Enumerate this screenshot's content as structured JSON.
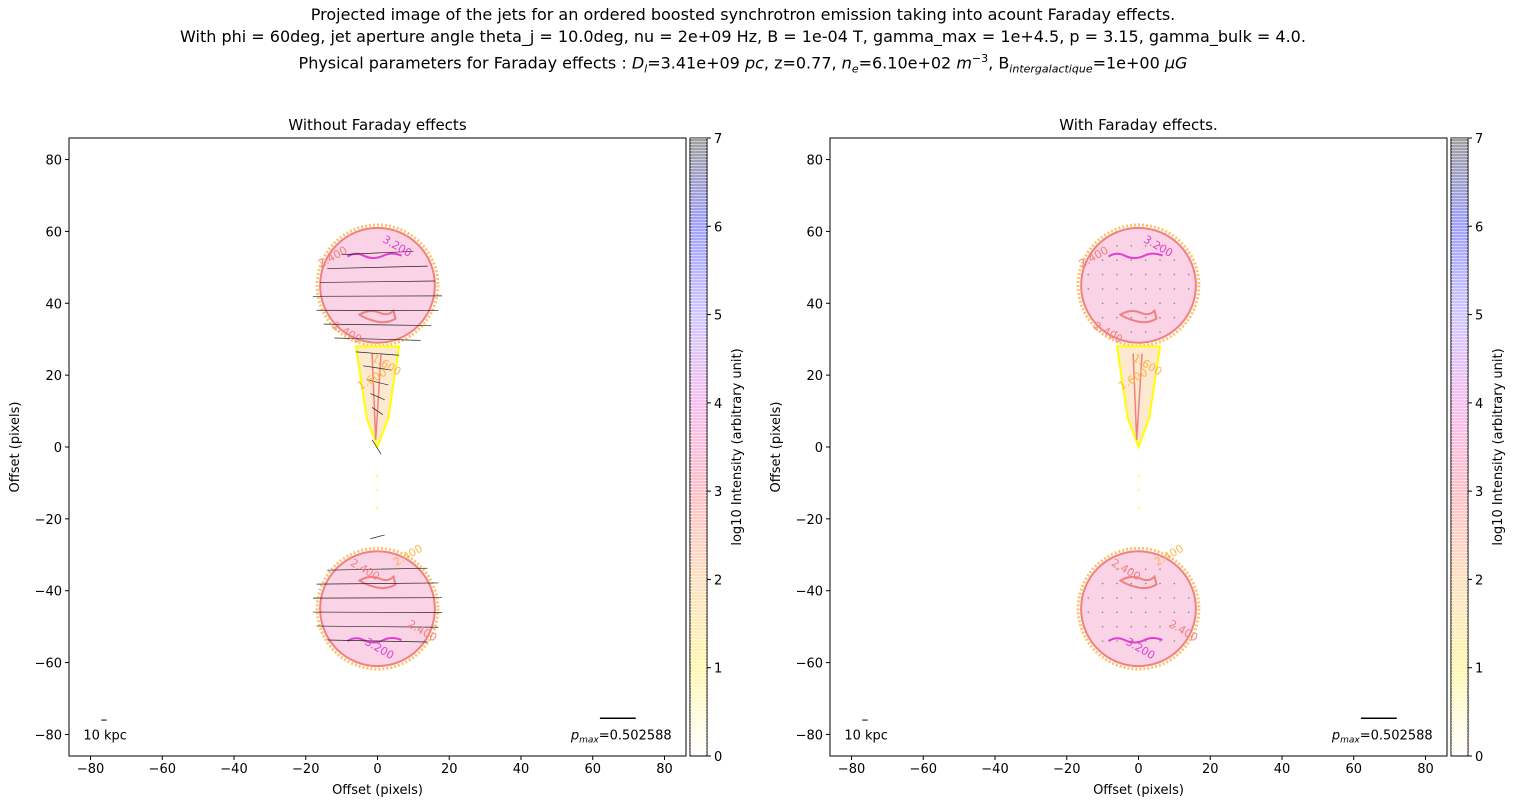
{
  "figure": {
    "title_line1": "Projected image of the jets for an ordered boosted synchrotron emission taking into acount Faraday effects.",
    "title_line2": "With phi = 60deg, jet aperture angle theta_j = 10.0deg, nu = 2e+09 Hz, B = 1e-04 T, gamma_max = 1e+4.5, p = 3.15, gamma_bulk = 4.0.",
    "title_line3_prefix": "Physical parameters for Faraday effects : ",
    "title_line3_dl": "D",
    "title_line3_dl_sub": "l",
    "title_line3_dl_val": "=3.41e+09 ",
    "title_line3_dl_unit": "pc",
    "title_line3_z": ", z",
    "title_line3_z_val": "=0.77, ",
    "title_line3_ne": "n",
    "title_line3_ne_sub": "e",
    "title_line3_ne_val": "=6.10e+02 ",
    "title_line3_ne_unit": "m",
    "title_line3_ne_exp": "−3",
    "title_line3_b": ", B",
    "title_line3_b_sub": "intergalactique",
    "title_line3_b_val": "=1e+00 ",
    "title_line3_b_unit": "μG"
  },
  "colors": {
    "yellow": "#ffff00",
    "orange": "#ffb347",
    "salmon": "#f08080",
    "pink_fill": "#fbd3e6",
    "magenta": "#e040d0",
    "cbar_stops": [
      "#ffffff",
      "#fff7b0",
      "#ffe0c0",
      "#ffc0c8",
      "#f8c0f0",
      "#d0c8ff",
      "#a0a0ff",
      "#a0a0a0"
    ]
  },
  "chart_data": [
    {
      "type": "heatmap",
      "title": "Without Faraday effects",
      "xlabel": "Offset (pixels)",
      "ylabel": "Offset (pixels)",
      "xlim": [
        -86,
        86
      ],
      "ylim": [
        -86,
        86
      ],
      "xticks": [
        -80,
        -60,
        -40,
        -20,
        0,
        20,
        40,
        60,
        80
      ],
      "yticks": [
        -80,
        -60,
        -40,
        -20,
        0,
        20,
        40,
        60,
        80
      ],
      "colorbar": {
        "label": "log10 Intensity (arbitrary unit)",
        "range": [
          0,
          7
        ],
        "ticks": [
          0,
          1,
          2,
          3,
          4,
          5,
          6,
          7
        ]
      },
      "contour_labels": [
        "2.400",
        "3.200",
        "2.400",
        "1.600",
        "1.600",
        "2.400",
        "2.400",
        "3.200",
        "2.400"
      ],
      "scalebar_label": "10 kpc",
      "pmax_label": "p",
      "pmax_sub": "max",
      "pmax_value": "=0.502588",
      "polarization_vectors": "long"
    },
    {
      "type": "heatmap",
      "title": "With Faraday effects.",
      "xlabel": "Offset (pixels)",
      "ylabel": "Offset (pixels)",
      "xlim": [
        -86,
        86
      ],
      "ylim": [
        -86,
        86
      ],
      "xticks": [
        -80,
        -60,
        -40,
        -20,
        0,
        20,
        40,
        60,
        80
      ],
      "yticks": [
        -80,
        -60,
        -40,
        -20,
        0,
        20,
        40,
        60,
        80
      ],
      "colorbar": {
        "label": "log10 Intensity (arbitrary unit)",
        "range": [
          0,
          7
        ],
        "ticks": [
          0,
          1,
          2,
          3,
          4,
          5,
          6,
          7
        ]
      },
      "contour_labels": [
        "2.400",
        "3.200",
        "2.400",
        "1.600",
        "1.600",
        "2.400",
        "2.400",
        "3.200",
        "2.400"
      ],
      "scalebar_label": "10 kpc",
      "pmax_label": "p",
      "pmax_sub": "max",
      "pmax_value": "=0.502588",
      "polarization_vectors": "dots"
    }
  ]
}
